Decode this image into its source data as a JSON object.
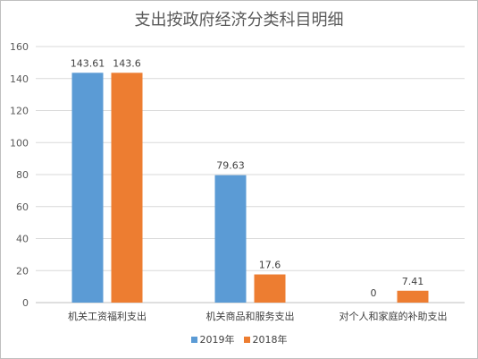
{
  "chart_data": {
    "type": "bar",
    "title": "支出按政府经济分类科目明细",
    "categories": [
      "机关工资福利支出",
      "机关商品和服务支出",
      "对个人和家庭的补助支出"
    ],
    "series": [
      {
        "name": "2019年",
        "values": [
          143.61,
          79.63,
          0
        ],
        "labels": [
          "143.61",
          "79.63",
          "0"
        ],
        "color": "#5b9bd5"
      },
      {
        "name": "2018年",
        "values": [
          143.6,
          17.6,
          7.41
        ],
        "labels": [
          "143.6",
          "17.6",
          "7.41"
        ],
        "color": "#ed7d31"
      }
    ],
    "yticks": [
      "0",
      "20",
      "40",
      "60",
      "80",
      "100",
      "120",
      "140",
      "160"
    ],
    "ylim": [
      0,
      160
    ],
    "grid": true,
    "legend_position": "bottom"
  }
}
